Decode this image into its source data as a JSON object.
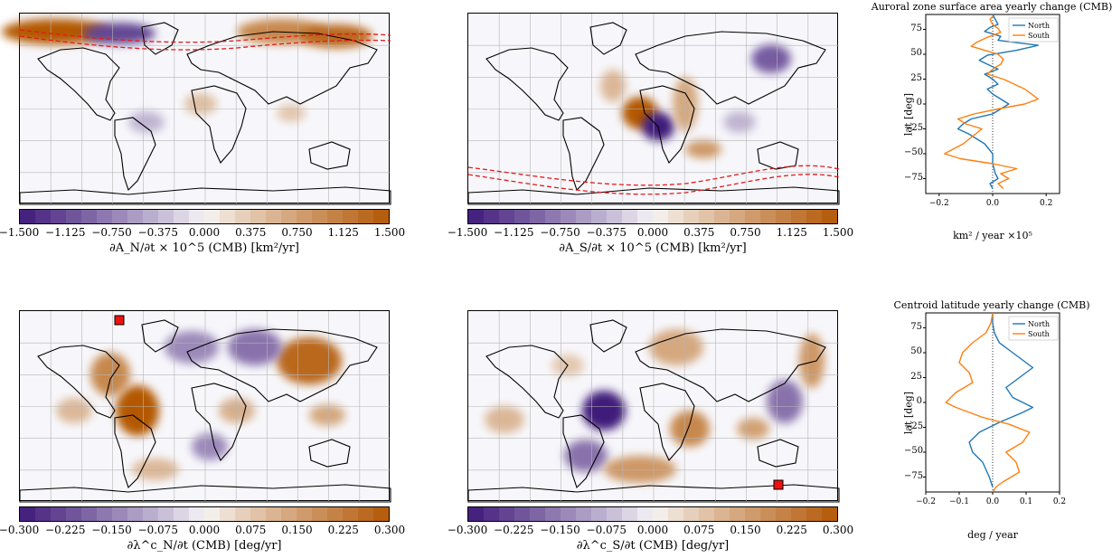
{
  "maps": [
    {
      "id": "an",
      "colorbar_label": "∂A_N/∂t × 10^5 (CMB) [km²/yr]",
      "ticks": [
        "−1.500",
        "−1.125",
        "−0.750",
        "−0.375",
        "0.000",
        "0.375",
        "0.750",
        "1.125",
        "1.500"
      ]
    },
    {
      "id": "as",
      "colorbar_label": "∂A_S/∂t × 10^5 (CMB) [km²/yr]",
      "ticks": [
        "−1.500",
        "−1.125",
        "−0.750",
        "−0.375",
        "0.000",
        "0.375",
        "0.750",
        "1.125",
        "1.500"
      ]
    },
    {
      "id": "ln",
      "colorbar_label": "∂λ^c_N/∂t (CMB) [deg/yr]",
      "ticks": [
        "−0.300",
        "−0.225",
        "−0.150",
        "−0.075",
        "0.000",
        "0.075",
        "0.150",
        "0.225",
        "0.300"
      ]
    },
    {
      "id": "ls",
      "colorbar_label": "∂λ^c_S/∂t (CMB) [deg/yr]",
      "ticks": [
        "−0.300",
        "−0.225",
        "−0.150",
        "−0.075",
        "0.000",
        "0.075",
        "0.150",
        "0.225",
        "0.300"
      ]
    }
  ],
  "colors": {
    "negative": "#3f1a7a",
    "positive": "#b35806",
    "north": "#1f77b4",
    "south": "#ff7f0e",
    "oval": "#e41a1c",
    "marker": "#ee1111"
  },
  "chart_data": [
    {
      "type": "line",
      "title": "Auroral zone surface area yearly change (CMB)",
      "xlabel": "km² / year ×10⁵",
      "ylabel": "lat [deg]",
      "xticks": [
        "−0.2",
        "0.0",
        "0.2"
      ],
      "yticks": [
        "75",
        "50",
        "25",
        "0",
        "−25",
        "−50",
        "−75"
      ],
      "xlim": [
        -0.25,
        0.25
      ],
      "ylim": [
        -90,
        90
      ],
      "series": [
        {
          "name": "North",
          "x": [
            0.0,
            0.01,
            0.02,
            -0.01,
            -0.03,
            0.03,
            0.02,
            0.17,
            0.09,
            -0.02,
            -0.05,
            -0.02,
            0.02,
            -0.03,
            0.0,
            0.02,
            -0.02,
            0.0,
            0.03,
            0.06,
            0.03,
            0.0,
            -0.08,
            -0.11,
            -0.13,
            -0.09,
            -0.03,
            0.0,
            0.0,
            0.01,
            0.02,
            -0.01,
            0.0
          ],
          "y": [
            90,
            85,
            80,
            77,
            73,
            68,
            64,
            59,
            54,
            49,
            44,
            40,
            35,
            30,
            25,
            20,
            15,
            10,
            5,
            0,
            -5,
            -10,
            -15,
            -20,
            -25,
            -30,
            -40,
            -50,
            -60,
            -70,
            -75,
            -80,
            -85
          ]
        },
        {
          "name": "South",
          "x": [
            0.0,
            -0.01,
            0.0,
            0.02,
            0.03,
            -0.02,
            -0.06,
            -0.08,
            -0.03,
            0.02,
            0.04,
            0.03,
            0.0,
            -0.02,
            0.04,
            0.12,
            0.17,
            0.12,
            0.02,
            -0.07,
            -0.13,
            -0.1,
            -0.04,
            -0.11,
            -0.18,
            -0.12,
            0.0,
            0.09,
            0.03,
            0.06,
            0.02,
            0.04
          ],
          "y": [
            88,
            85,
            80,
            76,
            72,
            67,
            62,
            58,
            54,
            50,
            45,
            40,
            35,
            30,
            25,
            15,
            5,
            0,
            -5,
            -10,
            -15,
            -20,
            -25,
            -40,
            -50,
            -55,
            -60,
            -65,
            -70,
            -75,
            -80,
            -85
          ]
        }
      ],
      "legend": "top-right"
    },
    {
      "type": "line",
      "title": "Centroid latitude yearly change (CMB)",
      "xlabel": "deg / year",
      "ylabel": "lat [deg]",
      "xticks": [
        "−0.2",
        "−0.1",
        "0.0",
        "0.1",
        "0.2"
      ],
      "yticks": [
        "75",
        "50",
        "25",
        "0",
        "−25",
        "−50",
        "−75"
      ],
      "xlim": [
        -0.2,
        0.2
      ],
      "ylim": [
        -90,
        90
      ],
      "series": [
        {
          "name": "North",
          "x": [
            0.0,
            0.0,
            0.005,
            0.02,
            0.06,
            0.1,
            0.12,
            0.08,
            0.04,
            0.06,
            0.12,
            0.09,
            0.02,
            -0.04,
            -0.07,
            -0.06,
            -0.03,
            -0.01,
            0.0
          ],
          "y": [
            90,
            80,
            70,
            60,
            50,
            40,
            35,
            25,
            15,
            5,
            -5,
            -10,
            -20,
            -30,
            -40,
            -50,
            -60,
            -75,
            -85
          ]
        },
        {
          "name": "South",
          "x": [
            0.0,
            -0.005,
            -0.02,
            -0.06,
            -0.09,
            -0.1,
            -0.07,
            -0.06,
            -0.11,
            -0.14,
            -0.11,
            -0.03,
            0.05,
            0.11,
            0.09,
            0.04,
            0.07,
            0.08,
            0.03,
            0.01,
            0.0
          ],
          "y": [
            90,
            80,
            70,
            60,
            50,
            40,
            30,
            20,
            10,
            0,
            -5,
            -15,
            -22,
            -30,
            -40,
            -50,
            -60,
            -70,
            -80,
            -85,
            -90
          ]
        }
      ],
      "legend": "top-right"
    }
  ]
}
